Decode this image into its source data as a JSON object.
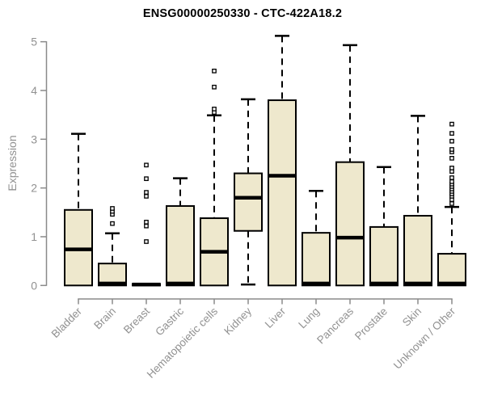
{
  "chart_data": {
    "type": "boxplot",
    "title": "ENSG00000250330 - CTC-422A18.2",
    "ylabel": "Expression",
    "xlabel": "",
    "ylim": [
      0,
      5
    ],
    "yticks": [
      0,
      1,
      2,
      3,
      4,
      5
    ],
    "grid": "off",
    "legend": "none",
    "categories": [
      "Bladder",
      "Brain",
      "Breast",
      "Gastric",
      "Hematopoietic cells",
      "Kidney",
      "Liver",
      "Lung",
      "Pancreas",
      "Prostate",
      "Skin",
      "Unknown / Other"
    ],
    "boxes": [
      {
        "category": "Bladder",
        "whisker_low": 0,
        "q1": 0,
        "median": 0.74,
        "q3": 1.55,
        "whisker_high": 3.11,
        "outliers": []
      },
      {
        "category": "Brain",
        "whisker_low": 0,
        "q1": 0,
        "median": 0.04,
        "q3": 0.45,
        "whisker_high": 1.07,
        "outliers": [
          1.27,
          1.46,
          1.52,
          1.58
        ]
      },
      {
        "category": "Breast",
        "whisker_low": 0,
        "q1": 0,
        "median": 0.02,
        "q3": 0.03,
        "whisker_high": 0.03,
        "outliers": [
          0.9,
          1.22,
          1.3,
          1.83,
          1.91,
          2.19,
          2.47
        ]
      },
      {
        "category": "Gastric",
        "whisker_low": 0,
        "q1": 0,
        "median": 0.04,
        "q3": 1.63,
        "whisker_high": 2.2,
        "outliers": []
      },
      {
        "category": "Hematopoietic cells",
        "whisker_low": 0,
        "q1": 0,
        "median": 0.69,
        "q3": 1.38,
        "whisker_high": 3.49,
        "outliers": [
          3.55,
          3.62,
          4.07,
          4.4
        ]
      },
      {
        "category": "Kidney",
        "whisker_low": 0.02,
        "q1": 1.12,
        "median": 1.8,
        "q3": 2.3,
        "whisker_high": 3.82,
        "outliers": []
      },
      {
        "category": "Liver",
        "whisker_low": 0,
        "q1": 0,
        "median": 2.25,
        "q3": 3.8,
        "whisker_high": 5.12,
        "outliers": []
      },
      {
        "category": "Lung",
        "whisker_low": 0,
        "q1": 0,
        "median": 0.04,
        "q3": 1.08,
        "whisker_high": 1.94,
        "outliers": []
      },
      {
        "category": "Pancreas",
        "whisker_low": 0,
        "q1": 0,
        "median": 0.98,
        "q3": 2.53,
        "whisker_high": 4.93,
        "outliers": []
      },
      {
        "category": "Prostate",
        "whisker_low": 0,
        "q1": 0,
        "median": 0.04,
        "q3": 1.2,
        "whisker_high": 2.43,
        "outliers": []
      },
      {
        "category": "Skin",
        "whisker_low": 0,
        "q1": 0,
        "median": 0.04,
        "q3": 1.43,
        "whisker_high": 3.48,
        "outliers": []
      },
      {
        "category": "Unknown / Other",
        "whisker_low": 0,
        "q1": 0,
        "median": 0.04,
        "q3": 0.65,
        "whisker_high": 1.61,
        "outliers": [
          1.68,
          1.76,
          1.83,
          1.88,
          1.93,
          1.98,
          2.03,
          2.08,
          2.13,
          2.21,
          2.34,
          2.41,
          2.61,
          2.74,
          2.79,
          2.96,
          3.12,
          3.31
        ]
      }
    ],
    "colors": {
      "box_fill": "#EEE8CD",
      "box_border": "#000000",
      "median": "#000000",
      "whisker": "#000000",
      "outlier_fill": "#ffffff",
      "axis": "#8a8a8a",
      "tick_label": "#919191",
      "title": "#000000",
      "background": "#ffffff"
    }
  }
}
